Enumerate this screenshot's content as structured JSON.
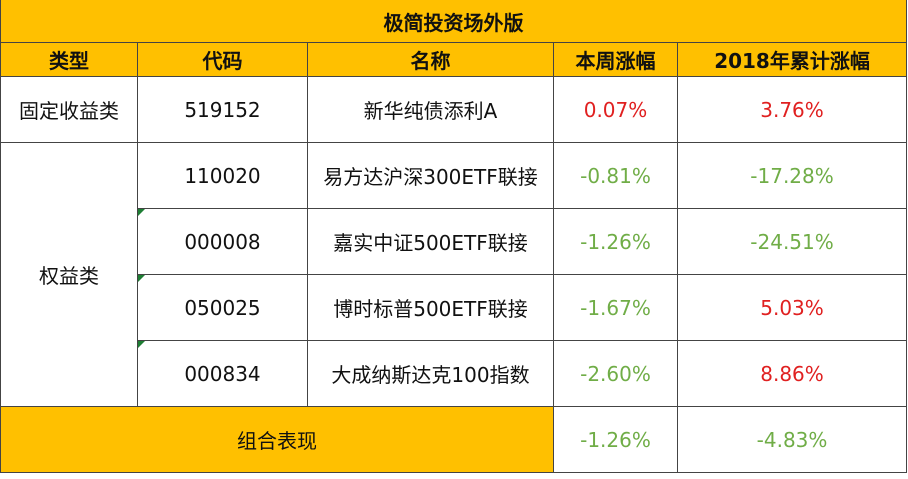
{
  "header": {
    "title": "极简投资场外版"
  },
  "table": {
    "columns": [
      "类型",
      "代码",
      "名称",
      "本周涨幅",
      "2018年累计涨幅"
    ],
    "groups": [
      {
        "label": "固定收益类",
        "funds": [
          {
            "code": "519152",
            "name": "新华纯债添利A",
            "week": "0.07%",
            "ytd": "3.76%"
          }
        ]
      },
      {
        "label": "权益类",
        "funds": [
          {
            "code": "110020",
            "name": "易方达沪深300ETF联接",
            "week": "-0.81%",
            "ytd": "-17.28%"
          },
          {
            "code": "000008",
            "name": "嘉实中证500ETF联接",
            "week": "-1.26%",
            "ytd": "-24.51%"
          },
          {
            "code": "050025",
            "name": "博时标普500ETF联接",
            "week": "-1.67%",
            "ytd": "5.03%"
          },
          {
            "code": "000834",
            "name": "大成纳斯达克100指数",
            "week": "-2.60%",
            "ytd": "8.86%"
          }
        ]
      }
    ],
    "footer": {
      "label": "组合表现",
      "week": "-1.26%",
      "ytd": "-4.83%"
    }
  }
}
